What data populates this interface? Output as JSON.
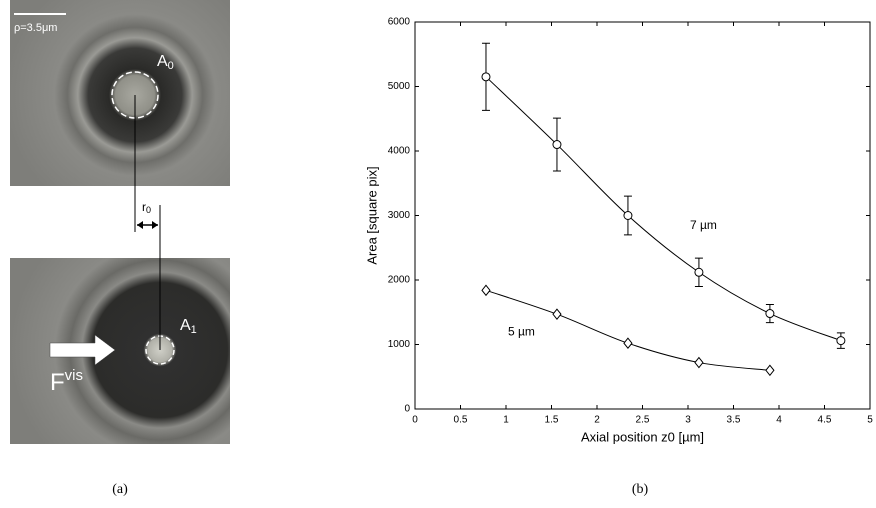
{
  "panel_a": {
    "scale_label": "ρ=3.5μm",
    "top_area": {
      "main": "A",
      "sub": "0"
    },
    "bottom_area": {
      "main": "A",
      "sub": "1"
    },
    "offset": {
      "main": "r",
      "sub": "0"
    },
    "force": {
      "main": "F",
      "sup": "vis"
    },
    "caption": "(a)"
  },
  "panel_b": {
    "caption": "(b)"
  },
  "chart_data": {
    "type": "scatter",
    "xlabel": "Axial position z0 [µm]",
    "ylabel": "Area [square pix]",
    "xlim": [
      0,
      5
    ],
    "ylim": [
      0,
      6000
    ],
    "xticks": [
      0,
      0.5,
      1,
      1.5,
      2,
      2.5,
      3,
      3.5,
      4,
      4.5,
      5
    ],
    "yticks": [
      0,
      1000,
      2000,
      3000,
      4000,
      5000,
      6000
    ],
    "series": [
      {
        "name": "7 µm",
        "color": "#000000",
        "marker": "circle",
        "x": [
          0.78,
          1.56,
          2.34,
          3.12,
          3.9,
          4.68
        ],
        "values": [
          5150,
          4100,
          3000,
          2120,
          1480,
          1060
        ],
        "errors": [
          520,
          410,
          300,
          220,
          140,
          120
        ]
      },
      {
        "name": "5 µm",
        "color": "#000000",
        "marker": "diamond",
        "x": [
          0.78,
          1.56,
          2.34,
          3.12,
          3.9
        ],
        "values": [
          1840,
          1470,
          1020,
          720,
          600
        ]
      }
    ]
  }
}
